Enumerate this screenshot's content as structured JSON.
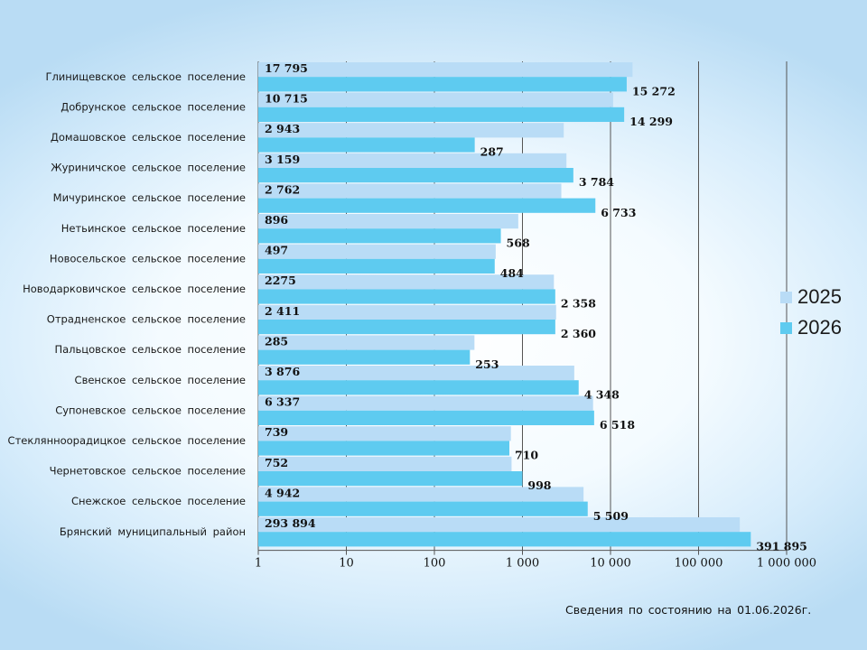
{
  "colors": {
    "s2025": "#b9dcf6",
    "s2026": "#5ecbf0",
    "grid": "#555555"
  },
  "legend": [
    {
      "name": "2025",
      "color": "#b9dcf6"
    },
    {
      "name": "2026",
      "color": "#5ecbf0"
    }
  ],
  "footnote": "Сведения по состоянию на 01.06.2026г.",
  "chart_data": {
    "type": "bar",
    "orientation": "horizontal",
    "x_scale": "log",
    "xlim": [
      1,
      1000000
    ],
    "x_ticks": [
      1,
      10,
      100,
      1000,
      10000,
      100000,
      1000000
    ],
    "x_tick_labels": [
      "1",
      "10",
      "100",
      "1 000",
      "10 000",
      "100 000",
      "1 000 000"
    ],
    "categories": [
      "Глинищевское сельское поселение",
      "Добрунское сельское поселение",
      "Домашовское сельское поселение",
      "Журиничское сельское поселение",
      "Мичуринское сельское поселение",
      "Нетьинское сельское поселение",
      "Новосельское сельское поселение",
      "Новодарковичское сельское поселение",
      "Отрадненское сельское поселение",
      "Пальцовское сельское поселение",
      "Свенское сельское поселение",
      "Супоневское сельское поселение",
      "Стеклянноорадицкое сельское поселение",
      "Чернетовское сельское поселение",
      "Снежское сельское поселение",
      "Брянский муниципальный район"
    ],
    "series": [
      {
        "name": "2025",
        "values": [
          17795,
          10715,
          2943,
          3159,
          2762,
          896,
          497,
          2275,
          2411,
          285,
          3876,
          6337,
          739,
          752,
          4942,
          293894
        ],
        "labels": [
          "17 795",
          "10 715",
          "2 943",
          "3 159",
          "2 762",
          "896",
          "497",
          "2275",
          "2 411",
          "285",
          "3 876",
          "6 337",
          "739",
          "752",
          "4 942",
          "293 894"
        ]
      },
      {
        "name": "2026",
        "values": [
          15272,
          14299,
          287,
          3784,
          6733,
          568,
          484,
          2358,
          2360,
          253,
          4348,
          6518,
          710,
          998,
          5509,
          391895
        ],
        "labels": [
          "15 272",
          "14 299",
          "287",
          "3 784",
          "6 733",
          "568",
          "484",
          "2 358",
          "2 360",
          "253",
          "4 348",
          "6 518",
          "710",
          "998",
          "5 509",
          "391 895"
        ]
      }
    ]
  }
}
